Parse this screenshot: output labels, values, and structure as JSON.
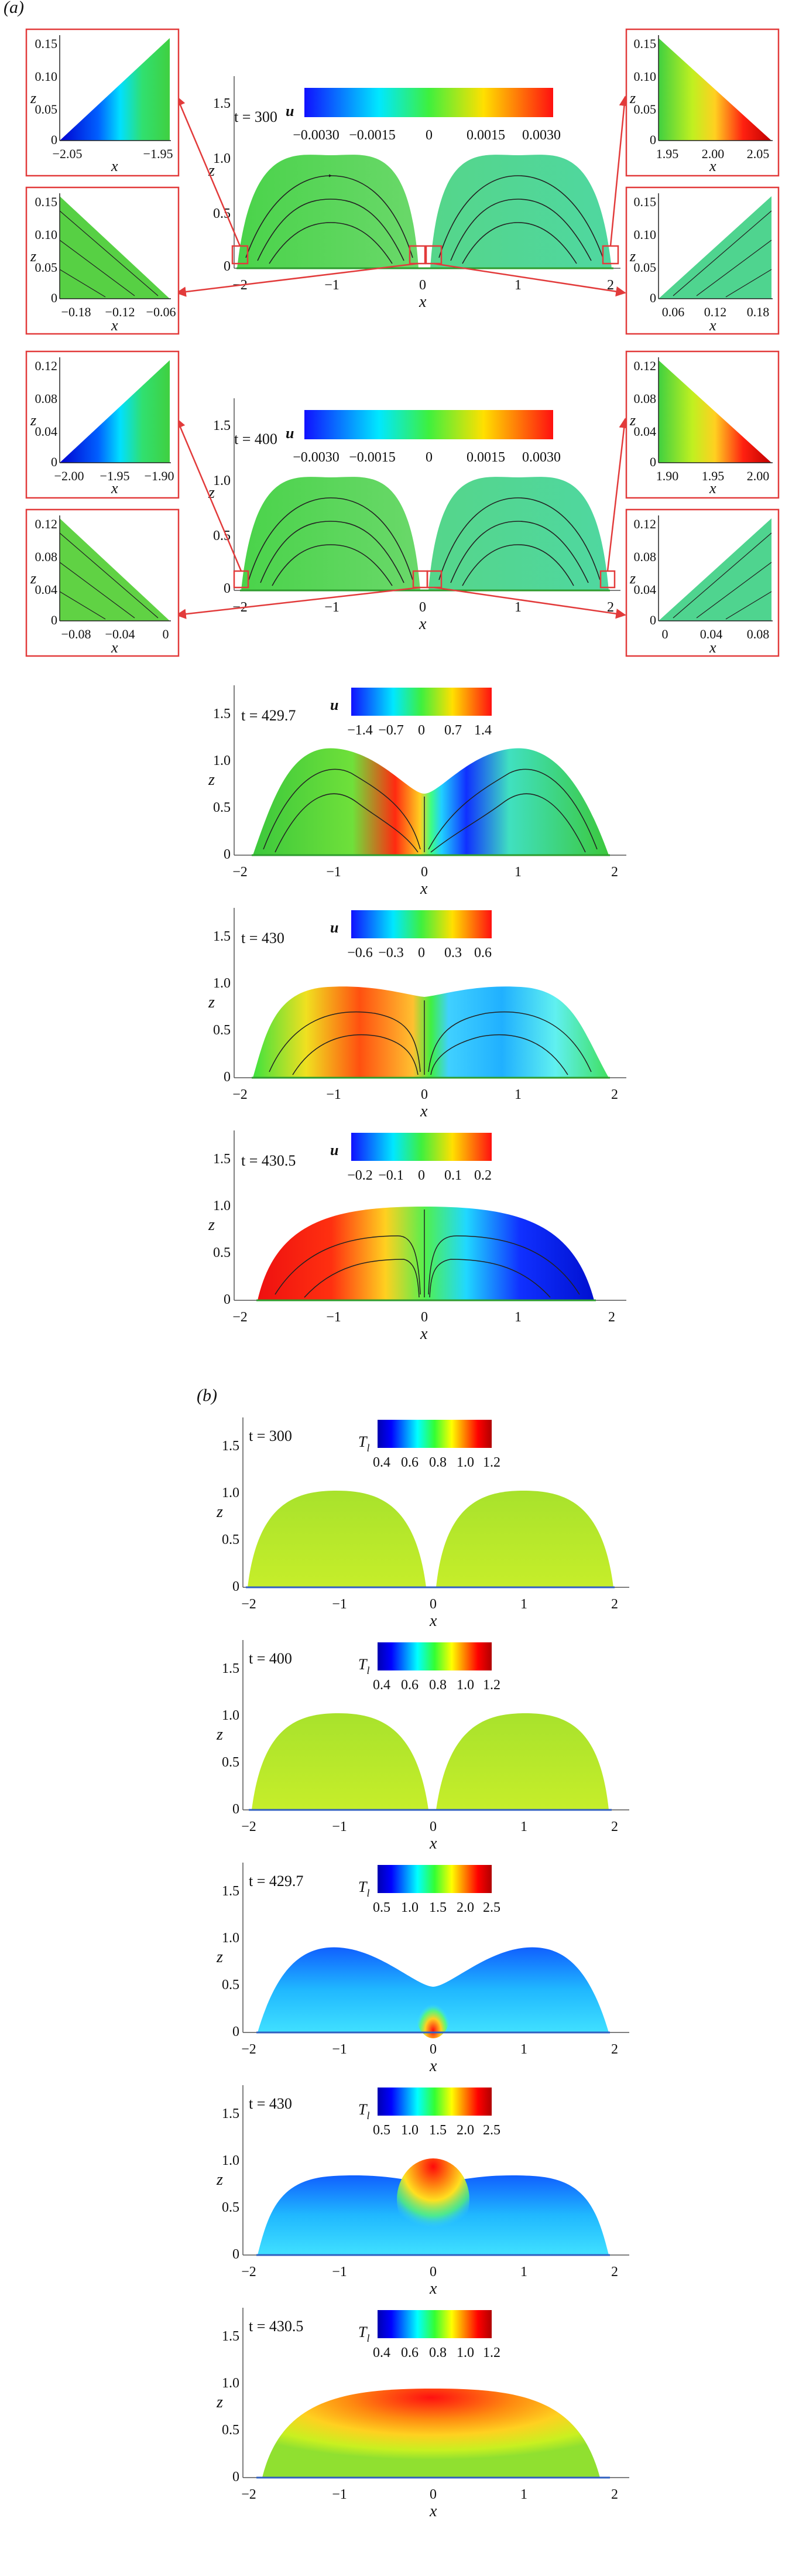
{
  "labels": {
    "part_a": "(a)",
    "part_b": "(b)",
    "x_label": "x",
    "z_label": "z",
    "u_label": "u",
    "T_label": "T",
    "T_sub": "l"
  },
  "panels_a": [
    {
      "time": "t = 300",
      "x_ticks": [
        "−2",
        "−1",
        "0",
        "1",
        "2"
      ],
      "z_ticks": [
        "0",
        "0.5",
        "1.0",
        "1.5"
      ],
      "colorbar_ticks": [
        "−0.0030",
        "−0.0015",
        "0",
        "0.0015",
        "0.0030"
      ],
      "insets": [
        {
          "position": "top-left",
          "x_ticks": [
            "−2.05",
            "−1.95"
          ],
          "z_ticks": [
            "0",
            "0.05",
            "0.10",
            "0.15"
          ]
        },
        {
          "position": "bottom-left",
          "x_ticks": [
            "−0.18",
            "−0.12",
            "−0.06"
          ],
          "z_ticks": [
            "0",
            "0.05",
            "0.10",
            "0.15"
          ]
        },
        {
          "position": "top-right",
          "x_ticks": [
            "1.95",
            "2.00",
            "2.05"
          ],
          "z_ticks": [
            "0",
            "0.05",
            "0.10",
            "0.15"
          ]
        },
        {
          "position": "bottom-right",
          "x_ticks": [
            "0.06",
            "0.12",
            "0.18"
          ],
          "z_ticks": [
            "0",
            "0.05",
            "0.10",
            "0.15"
          ]
        }
      ]
    },
    {
      "time": "t = 400",
      "x_ticks": [
        "−2",
        "−1",
        "0",
        "1",
        "2"
      ],
      "z_ticks": [
        "0",
        "0.5",
        "1.0",
        "1.5"
      ],
      "colorbar_ticks": [
        "−0.0030",
        "−0.0015",
        "0",
        "0.0015",
        "0.0030"
      ],
      "insets": [
        {
          "position": "top-left",
          "x_ticks": [
            "−2.00",
            "−1.95",
            "−1.90"
          ],
          "z_ticks": [
            "0",
            "0.04",
            "0.08",
            "0.12"
          ]
        },
        {
          "position": "bottom-left",
          "x_ticks": [
            "−0.08",
            "−0.04",
            "0"
          ],
          "z_ticks": [
            "0",
            "0.04",
            "0.08",
            "0.12"
          ]
        },
        {
          "position": "top-right",
          "x_ticks": [
            "1.90",
            "1.95",
            "2.00"
          ],
          "z_ticks": [
            "0",
            "0.04",
            "0.08",
            "0.12"
          ]
        },
        {
          "position": "bottom-right",
          "x_ticks": [
            "0",
            "0.04",
            "0.08"
          ],
          "z_ticks": [
            "0",
            "0.04",
            "0.08",
            "0.12"
          ]
        }
      ]
    },
    {
      "time": "t = 429.7",
      "x_ticks": [
        "−2",
        "−1",
        "0",
        "1",
        "2"
      ],
      "z_ticks": [
        "0",
        "0.5",
        "1.0",
        "1.5"
      ],
      "colorbar_ticks": [
        "−1.4",
        "−0.7",
        "0",
        "0.7",
        "1.4"
      ]
    },
    {
      "time": "t = 430",
      "x_ticks": [
        "−2",
        "−1",
        "0",
        "1",
        "2"
      ],
      "z_ticks": [
        "0",
        "0.5",
        "1.0",
        "1.5"
      ],
      "colorbar_ticks": [
        "−0.6",
        "−0.3",
        "0",
        "0.3",
        "0.6"
      ]
    },
    {
      "time": "t = 430.5",
      "x_ticks": [
        "−2",
        "−1",
        "0",
        "1",
        "2"
      ],
      "z_ticks": [
        "0",
        "0.5",
        "1.0",
        "1.5"
      ],
      "colorbar_ticks": [
        "−0.2",
        "−0.1",
        "0",
        "0.1",
        "0.2"
      ]
    }
  ],
  "panels_b": [
    {
      "time": "t = 300",
      "x_ticks": [
        "−2",
        "−1",
        "0",
        "1",
        "2"
      ],
      "z_ticks": [
        "0",
        "0.5",
        "1.0",
        "1.5"
      ],
      "colorbar_ticks": [
        "0.4",
        "0.6",
        "0.8",
        "1.0",
        "1.2"
      ]
    },
    {
      "time": "t = 400",
      "x_ticks": [
        "−2",
        "−1",
        "0",
        "1",
        "2"
      ],
      "z_ticks": [
        "0",
        "0.5",
        "1.0",
        "1.5"
      ],
      "colorbar_ticks": [
        "0.4",
        "0.6",
        "0.8",
        "1.0",
        "1.2"
      ]
    },
    {
      "time": "t = 429.7",
      "x_ticks": [
        "−2",
        "−1",
        "0",
        "1",
        "2"
      ],
      "z_ticks": [
        "0",
        "0.5",
        "1.0",
        "1.5"
      ],
      "colorbar_ticks": [
        "0.5",
        "1.0",
        "1.5",
        "2.0",
        "2.5"
      ]
    },
    {
      "time": "t = 430",
      "x_ticks": [
        "−2",
        "−1",
        "0",
        "1",
        "2"
      ],
      "z_ticks": [
        "0",
        "0.5",
        "1.0",
        "1.5"
      ],
      "colorbar_ticks": [
        "0.5",
        "1.0",
        "1.5",
        "2.0",
        "2.5"
      ]
    },
    {
      "time": "t = 430.5",
      "x_ticks": [
        "−2",
        "−1",
        "0",
        "1",
        "2"
      ],
      "z_ticks": [
        "0",
        "0.5",
        "1.0",
        "1.5"
      ],
      "colorbar_ticks": [
        "0.4",
        "0.6",
        "0.8",
        "1.0",
        "1.2"
      ]
    }
  ],
  "colors": {
    "jet_blue": "#0000ff",
    "jet_cyan": "#00ffff",
    "jet_green": "#00ff00",
    "jet_yellow": "#ffff00",
    "jet_red": "#ff0000",
    "droplet_green": "#5fd13a",
    "inset_frame": "#e23b3b",
    "substrate": "#2e9c2e"
  }
}
